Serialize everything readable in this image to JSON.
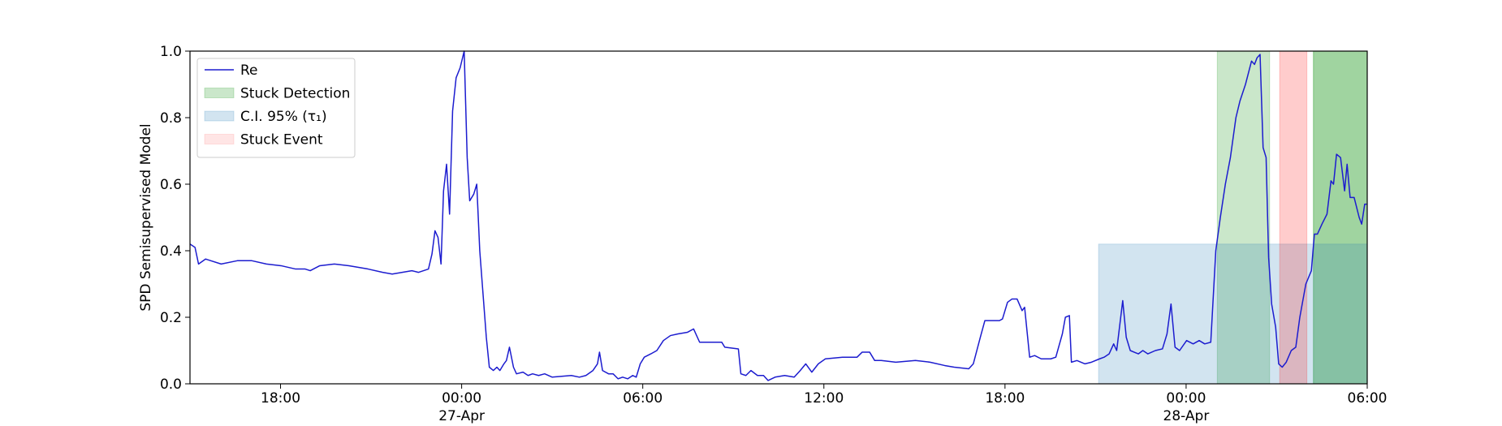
{
  "chart_data": {
    "type": "line",
    "ylabel": "SPD Semisupervised Model",
    "xlim": [
      "1900-04-26T15:00",
      "1900-04-28T06:00"
    ],
    "ylim": [
      0,
      1
    ],
    "xticks": [
      {
        "value": "1900-04-26T18:00",
        "label": "18:00"
      },
      {
        "value": "1900-04-27T00:00",
        "label": "00:00\n27-Apr\n1900"
      },
      {
        "value": "1900-04-27T06:00",
        "label": "06:00"
      },
      {
        "value": "1900-04-27T12:00",
        "label": "12:00"
      },
      {
        "value": "1900-04-27T18:00",
        "label": "18:00"
      },
      {
        "value": "1900-04-28T00:00",
        "label": "00:00\n28-Apr"
      },
      {
        "value": "1900-04-28T06:00",
        "label": "06:00"
      }
    ],
    "yticks": [
      {
        "value": 0,
        "label": "0.0"
      },
      {
        "value": 0.2,
        "label": "0.2"
      },
      {
        "value": 0.4,
        "label": "0.4"
      },
      {
        "value": 0.6,
        "label": "0.6"
      },
      {
        "value": 0.8,
        "label": "0.8"
      },
      {
        "value": 1,
        "label": "1.0"
      }
    ],
    "legend": "upper left",
    "x": [
      "1900-04-26T15:00",
      "1900-04-26T15:10",
      "1900-04-26T15:17",
      "1900-04-26T15:31",
      "1900-04-26T16:02",
      "1900-04-26T16:34",
      "1900-04-26T17:03",
      "1900-04-26T17:32",
      "1900-04-26T18:01",
      "1900-04-26T18:30",
      "1900-04-26T18:49",
      "1900-04-26T18:59",
      "1900-04-26T19:18",
      "1900-04-26T19:47",
      "1900-04-26T20:16",
      "1900-04-26T20:54",
      "1900-04-26T21:23",
      "1900-04-26T21:42",
      "1900-04-26T22:02",
      "1900-04-26T22:21",
      "1900-04-26T22:34",
      "1900-04-26T22:54",
      "1900-04-26T23:01",
      "1900-04-26T23:07",
      "1900-04-26T23:13",
      "1900-04-26T23:19",
      "1900-04-26T23:24",
      "1900-04-26T23:30",
      "1900-04-26T23:36",
      "1900-04-26T23:42",
      "1900-04-26T23:49",
      "1900-04-26T23:57",
      "1900-04-27T00:05",
      "1900-04-27T00:11",
      "1900-04-27T00:16",
      "1900-04-27T00:24",
      "1900-04-27T00:30",
      "1900-04-27T00:36",
      "1900-04-27T00:43",
      "1900-04-27T00:49",
      "1900-04-27T00:55",
      "1900-04-27T01:03",
      "1900-04-27T01:10",
      "1900-04-27T01:16",
      "1900-04-27T01:24",
      "1900-04-27T01:29",
      "1900-04-27T01:35",
      "1900-04-27T01:43",
      "1900-04-27T01:49",
      "1900-04-27T02:02",
      "1900-04-27T02:12",
      "1900-04-27T02:21",
      "1900-04-27T02:33",
      "1900-04-27T02:45",
      "1900-04-27T03:00",
      "1900-04-27T03:38",
      "1900-04-27T03:54",
      "1900-04-27T04:07",
      "1900-04-27T04:21",
      "1900-04-27T04:30",
      "1900-04-27T04:34",
      "1900-04-27T04:40",
      "1900-04-27T04:52",
      "1900-04-27T05:01",
      "1900-04-27T05:11",
      "1900-04-27T05:20",
      "1900-04-27T05:30",
      "1900-04-27T05:40",
      "1900-04-27T05:47",
      "1900-04-27T05:55",
      "1900-04-27T06:03",
      "1900-04-27T06:16",
      "1900-04-27T06:28",
      "1900-04-27T06:41",
      "1900-04-27T06:55",
      "1900-04-27T07:10",
      "1900-04-27T07:29",
      "1900-04-27T07:41",
      "1900-04-27T07:53",
      "1900-04-27T08:37",
      "1900-04-27T08:43",
      "1900-04-27T09:10",
      "1900-04-27T09:15",
      "1900-04-27T09:25",
      "1900-04-27T09:35",
      "1900-04-27T09:48",
      "1900-04-27T10:00",
      "1900-04-27T10:09",
      "1900-04-27T10:23",
      "1900-04-27T10:42",
      "1900-04-27T11:01",
      "1900-04-27T11:13",
      "1900-04-27T11:24",
      "1900-04-27T11:36",
      "1900-04-27T11:49",
      "1900-04-27T12:03",
      "1900-04-27T12:37",
      "1900-04-27T13:06",
      "1900-04-27T13:16",
      "1900-04-27T13:31",
      "1900-04-27T13:41",
      "1900-04-27T13:54",
      "1900-04-27T14:23",
      "1900-04-27T15:02",
      "1900-04-27T15:31",
      "1900-04-27T16:00",
      "1900-04-27T16:19",
      "1900-04-27T16:48",
      "1900-04-27T16:57",
      "1900-04-27T17:11",
      "1900-04-27T17:20",
      "1900-04-27T17:49",
      "1900-04-27T17:55",
      "1900-04-27T18:05",
      "1900-04-27T18:14",
      "1900-04-27T18:24",
      "1900-04-27T18:34",
      "1900-04-27T18:39",
      "1900-04-27T18:49",
      "1900-04-27T18:59",
      "1900-04-27T19:12",
      "1900-04-27T19:31",
      "1900-04-27T19:41",
      "1900-04-27T19:54",
      "1900-04-27T20:00",
      "1900-04-27T20:08",
      "1900-04-27T20:12",
      "1900-04-27T20:23",
      "1900-04-27T20:39",
      "1900-04-27T20:52",
      "1900-04-27T21:08",
      "1900-04-27T21:17",
      "1900-04-27T21:27",
      "1900-04-27T21:36",
      "1900-04-27T21:42",
      "1900-04-27T21:54",
      "1900-04-27T22:01",
      "1900-04-27T22:09",
      "1900-04-27T22:25",
      "1900-04-27T22:34",
      "1900-04-27T22:44",
      "1900-04-27T22:59",
      "1900-04-27T23:13",
      "1900-04-27T23:22",
      "1900-04-27T23:30",
      "1900-04-27T23:38",
      "1900-04-27T23:47",
      "1900-04-28T00:01",
      "1900-04-28T00:14",
      "1900-04-28T00:26",
      "1900-04-28T00:37",
      "1900-04-28T00:49",
      "1900-04-28T00:59",
      "1900-04-28T01:08",
      "1900-04-28T01:18",
      "1900-04-28T01:28",
      "1900-04-28T01:39",
      "1900-04-28T01:47",
      "1900-04-28T01:58",
      "1900-04-28T02:10",
      "1900-04-28T02:16",
      "1900-04-28T02:21",
      "1900-04-28T02:27",
      "1900-04-28T02:33",
      "1900-04-28T02:39",
      "1900-04-28T02:44",
      "1900-04-28T02:50",
      "1900-04-28T02:58",
      "1900-04-28T03:04",
      "1900-04-28T03:11",
      "1900-04-28T03:19",
      "1900-04-28T03:29",
      "1900-04-28T03:38",
      "1900-04-28T03:46",
      "1900-04-28T03:58",
      "1900-04-28T04:09",
      "1900-04-28T04:15",
      "1900-04-28T04:21",
      "1900-04-28T04:30",
      "1900-04-28T04:40",
      "1900-04-28T04:48",
      "1900-04-28T04:53",
      "1900-04-28T04:59",
      "1900-04-28T05:07",
      "1900-04-28T05:15",
      "1900-04-28T05:20",
      "1900-04-28T05:26",
      "1900-04-28T05:34",
      "1900-04-28T05:44",
      "1900-04-28T05:49",
      "1900-04-28T05:55",
      "1900-04-28T05:59"
    ],
    "series": [
      {
        "name": "Re",
        "color": "#1c1ccf",
        "values": [
          0.42,
          0.41,
          0.36,
          0.375,
          0.36,
          0.37,
          0.37,
          0.36,
          0.355,
          0.345,
          0.345,
          0.34,
          0.355,
          0.36,
          0.355,
          0.345,
          0.335,
          0.33,
          0.335,
          0.34,
          0.335,
          0.345,
          0.39,
          0.46,
          0.44,
          0.36,
          0.58,
          0.66,
          0.51,
          0.82,
          0.92,
          0.95,
          1.0,
          0.68,
          0.55,
          0.57,
          0.6,
          0.4,
          0.26,
          0.14,
          0.05,
          0.04,
          0.05,
          0.04,
          0.06,
          0.07,
          0.11,
          0.05,
          0.03,
          0.035,
          0.025,
          0.03,
          0.025,
          0.03,
          0.02,
          0.025,
          0.02,
          0.025,
          0.04,
          0.06,
          0.095,
          0.04,
          0.03,
          0.03,
          0.015,
          0.02,
          0.015,
          0.025,
          0.02,
          0.06,
          0.08,
          0.09,
          0.1,
          0.13,
          0.145,
          0.15,
          0.155,
          0.165,
          0.125,
          0.125,
          0.11,
          0.105,
          0.03,
          0.025,
          0.04,
          0.025,
          0.025,
          0.01,
          0.02,
          0.025,
          0.02,
          0.04,
          0.06,
          0.035,
          0.06,
          0.075,
          0.08,
          0.08,
          0.095,
          0.095,
          0.07,
          0.07,
          0.065,
          0.07,
          0.065,
          0.055,
          0.05,
          0.045,
          0.06,
          0.14,
          0.19,
          0.19,
          0.195,
          0.245,
          0.255,
          0.255,
          0.22,
          0.23,
          0.08,
          0.085,
          0.075,
          0.075,
          0.08,
          0.15,
          0.2,
          0.205,
          0.065,
          0.07,
          0.06,
          0.065,
          0.075,
          0.08,
          0.09,
          0.12,
          0.1,
          0.25,
          0.14,
          0.1,
          0.09,
          0.1,
          0.09,
          0.1,
          0.105,
          0.15,
          0.24,
          0.11,
          0.1,
          0.13,
          0.12,
          0.13,
          0.12,
          0.125,
          0.4,
          0.5,
          0.6,
          0.68,
          0.8,
          0.85,
          0.9,
          0.97,
          0.96,
          0.98,
          0.99,
          0.71,
          0.68,
          0.38,
          0.24,
          0.17,
          0.06,
          0.05,
          0.065,
          0.1,
          0.11,
          0.2,
          0.3,
          0.34,
          0.45,
          0.45,
          0.48,
          0.51,
          0.61,
          0.6,
          0.69,
          0.68,
          0.58,
          0.66,
          0.56,
          0.56,
          0.5,
          0.48,
          0.54,
          0.54
        ]
      }
    ],
    "regions": [
      {
        "name": "Stuck Detection",
        "color": "#2ca02c",
        "alpha": 0.25,
        "spans": [
          {
            "x": [
              "1900-04-28T01:02",
              "1900-04-28T02:46"
            ],
            "y": [
              0,
              1
            ],
            "alpha": 0.25
          },
          {
            "x": [
              "1900-04-28T04:13",
              "1900-04-28T06:00"
            ],
            "y": [
              0,
              1
            ],
            "alpha": 0.45
          }
        ]
      },
      {
        "name": "C.I. 95% (τ₁)",
        "color": "#1f77b4",
        "alpha": 0.2,
        "spans": [
          {
            "x": [
              "1900-04-27T21:06",
              "1900-04-28T06:00"
            ],
            "y": [
              0,
              0.42
            ],
            "alpha": 0.2
          }
        ]
      },
      {
        "name": "Stuck Event",
        "color": "#ff0000",
        "alpha": 0.1,
        "spans": [
          {
            "x": [
              "1900-04-28T03:06",
              "1900-04-28T04:00"
            ],
            "y": [
              0,
              1
            ],
            "alpha": 0.2
          }
        ]
      }
    ]
  }
}
